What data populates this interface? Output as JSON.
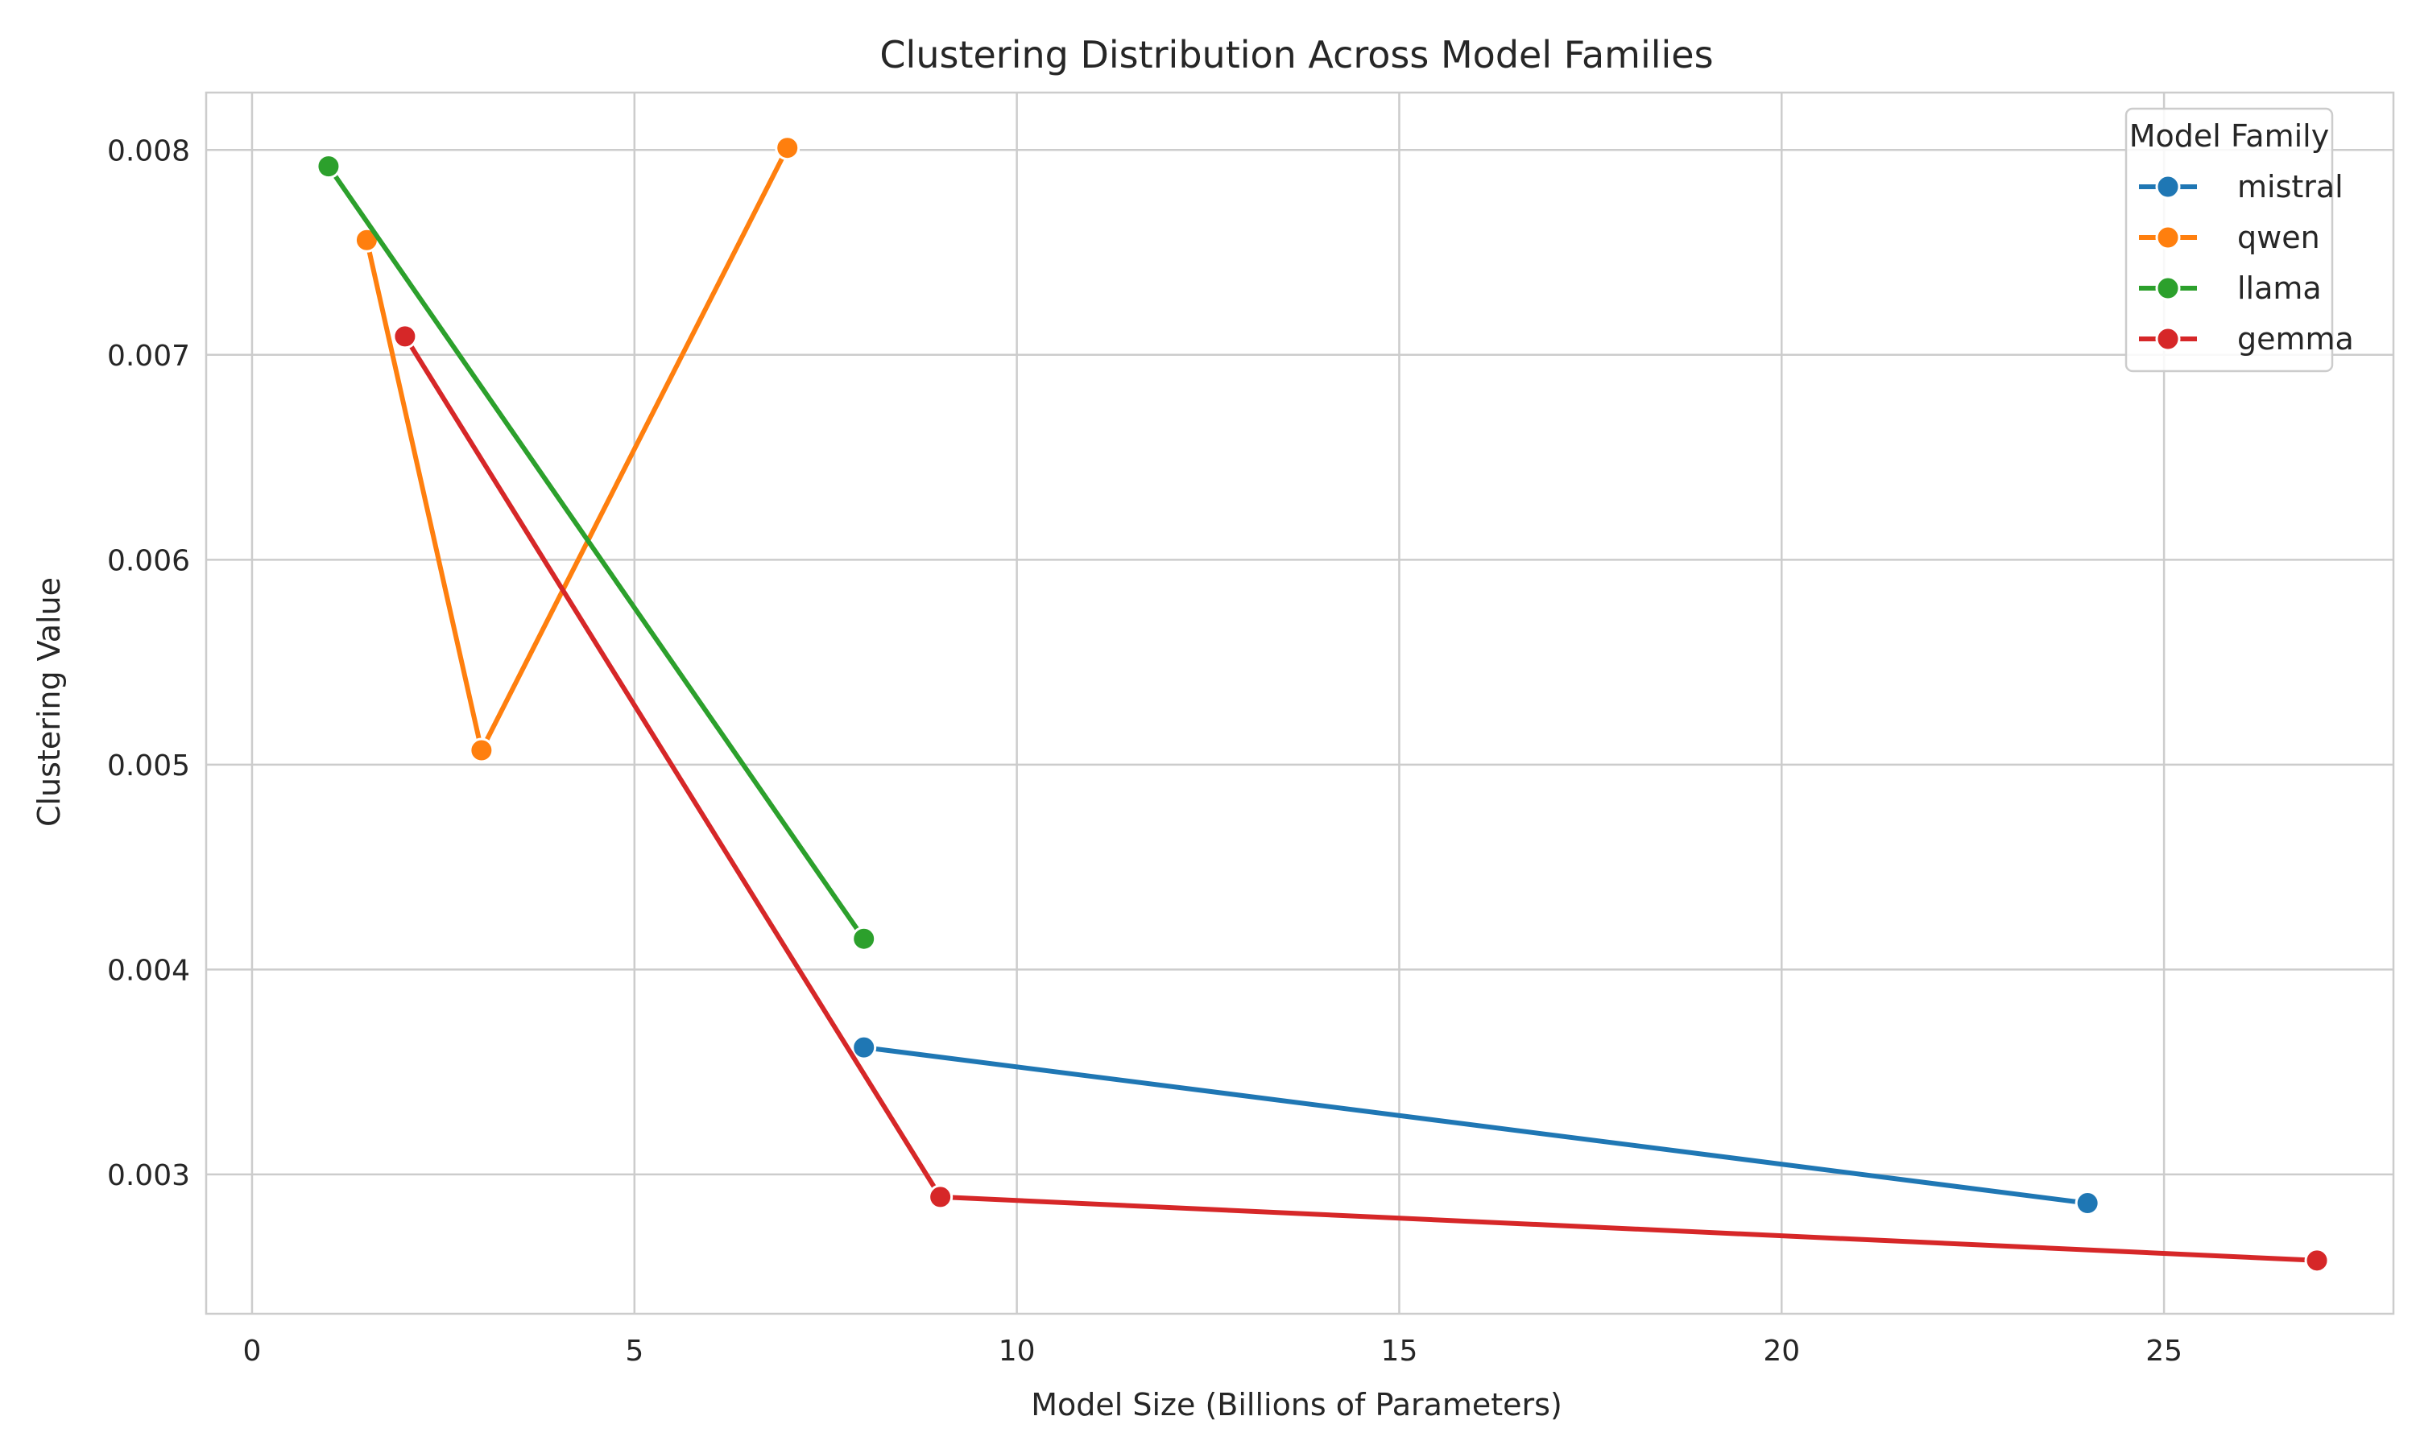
{
  "chart_data": {
    "type": "line",
    "title": "Clustering Distribution Across Model Families",
    "xlabel": "Model Size (Billions of Parameters)",
    "ylabel": "Clustering Value",
    "xlim": [
      -0.6,
      28.0
    ],
    "ylim": [
      0.00232,
      0.00828
    ],
    "xticks": [
      0,
      5,
      10,
      15,
      20,
      25
    ],
    "xtick_labels": [
      "0",
      "5",
      "10",
      "15",
      "20",
      "25"
    ],
    "yticks": [
      0.003,
      0.004,
      0.005,
      0.006,
      0.007,
      0.008
    ],
    "ytick_labels": [
      "0.003",
      "0.004",
      "0.005",
      "0.006",
      "0.007",
      "0.008"
    ],
    "grid": true,
    "legend": {
      "title": "Model Family",
      "placement": "top-right"
    },
    "series": [
      {
        "name": "mistral",
        "color": "#1f77b4",
        "points": [
          [
            8,
            0.00362
          ],
          [
            24,
            0.00286
          ]
        ]
      },
      {
        "name": "qwen",
        "color": "#ff7f0e",
        "points": [
          [
            1.5,
            0.00756
          ],
          [
            3,
            0.00507
          ],
          [
            7,
            0.00801
          ]
        ]
      },
      {
        "name": "llama",
        "color": "#2ca02c",
        "points": [
          [
            1,
            0.00792
          ],
          [
            8,
            0.00415
          ]
        ]
      },
      {
        "name": "gemma",
        "color": "#d62728",
        "points": [
          [
            2,
            0.00709
          ],
          [
            9,
            0.00289
          ],
          [
            27,
            0.00258
          ]
        ]
      }
    ]
  }
}
